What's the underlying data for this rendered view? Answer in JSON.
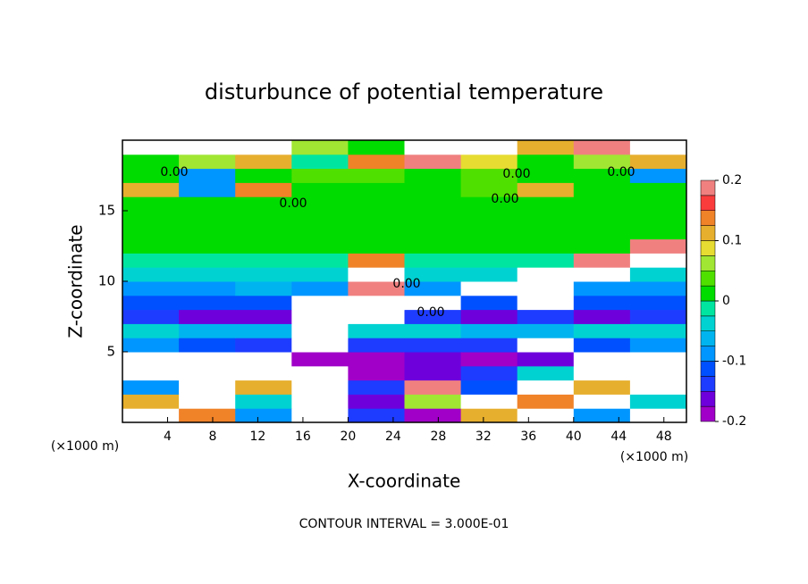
{
  "chart_data": {
    "type": "heatmap",
    "title": "disturbunce of potential temperature",
    "xlabel": "X-coordinate",
    "ylabel": "Z-coordinate",
    "x_units": [
      "(×1000 m)",
      "(×1000 m)"
    ],
    "footer": "CONTOUR INTERVAL = 3.000E-01",
    "xlim": [
      0,
      50
    ],
    "ylim": [
      0,
      20
    ],
    "xticks": [
      4,
      8,
      12,
      16,
      20,
      24,
      28,
      32,
      36,
      40,
      44,
      48
    ],
    "yticks": [
      5,
      10,
      15
    ],
    "x": [
      2.5,
      7.5,
      12.5,
      17.5,
      22.5,
      27.5,
      32.5,
      37.5,
      42.5,
      47.5
    ],
    "y": [
      0.5,
      1.5,
      2.5,
      3.5,
      4.5,
      5.5,
      6.5,
      7.5,
      8.5,
      9.5,
      10.5,
      11.5,
      12.5,
      13.5,
      14.5,
      15.5,
      16.5,
      17.5,
      18.5,
      19.5
    ],
    "z": [
      [
        0.3,
        0.15,
        -0.1,
        0.3,
        -0.15,
        -0.18,
        0.1,
        0.3,
        -0.1,
        0.3
      ],
      [
        0.12,
        0.3,
        -0.05,
        0.3,
        -0.17,
        0.05,
        0.3,
        0.15,
        0.3,
        -0.05
      ],
      [
        -0.1,
        0.3,
        0.1,
        -0.3,
        -0.15,
        0.2,
        -0.12,
        -0.3,
        0.1,
        0.3
      ],
      [
        0.3,
        -0.3,
        -0.3,
        -0.3,
        -0.18,
        -0.17,
        -0.15,
        -0.05,
        -0.3,
        0.3
      ],
      [
        0.25,
        0.3,
        0.3,
        -0.19,
        -0.18,
        -0.17,
        -0.18,
        -0.16,
        0.3,
        0.3
      ],
      [
        -0.1,
        -0.12,
        -0.13,
        -0.25,
        -0.14,
        -0.13,
        -0.13,
        0.25,
        -0.12,
        -0.1
      ],
      [
        -0.05,
        -0.06,
        -0.07,
        0.3,
        -0.05,
        -0.05,
        -0.06,
        -0.07,
        -0.05,
        -0.05
      ],
      [
        -0.15,
        -0.16,
        -0.16,
        0.3,
        0.3,
        -0.15,
        -0.16,
        -0.15,
        -0.16,
        -0.15
      ],
      [
        -0.12,
        -0.11,
        -0.12,
        -0.3,
        0.3,
        0.25,
        -0.12,
        0.3,
        -0.12,
        -0.11
      ],
      [
        -0.08,
        -0.08,
        -0.07,
        -0.09,
        0.2,
        -0.08,
        0.3,
        0.3,
        -0.08,
        -0.08
      ],
      [
        -0.04,
        -0.04,
        -0.05,
        -0.04,
        0.3,
        -0.04,
        -0.04,
        0.3,
        0.25,
        -0.04
      ],
      [
        -0.02,
        -0.02,
        -0.02,
        -0.02,
        0.15,
        -0.02,
        -0.02,
        -0.02,
        0.2,
        0.25
      ],
      [
        0.0,
        0.0,
        0.0,
        0.0,
        0.0,
        0.0,
        0.0,
        0.0,
        0.01,
        0.2
      ],
      [
        0.01,
        0.01,
        0.01,
        0.01,
        0.01,
        0.01,
        0.01,
        0.01,
        0.01,
        0.01
      ],
      [
        0.0,
        0.0,
        0.0,
        0.0,
        0.0,
        0.0,
        0.0,
        0.0,
        0.0,
        0.0
      ],
      [
        0.0,
        0.005,
        0.0,
        0.0,
        0.0,
        0.0,
        0.0,
        0.0,
        0.0,
        0.0
      ],
      [
        0.12,
        -0.08,
        0.13,
        0.02,
        0.01,
        0.0,
        0.03,
        0.12,
        0.01,
        0.0
      ],
      [
        0.02,
        -0.09,
        0.02,
        0.03,
        0.03,
        0.02,
        0.03,
        0.02,
        0.02,
        -0.08
      ],
      [
        0.0,
        0.05,
        0.1,
        -0.02,
        0.15,
        0.2,
        0.08,
        0.0,
        0.05,
        0.12
      ],
      [
        0.3,
        0.3,
        0.25,
        0.05,
        0.02,
        -0.3,
        -0.3,
        0.1,
        0.2,
        0.3
      ]
    ],
    "clim": [
      -0.2,
      0.2
    ],
    "colors": [
      "#a000c8",
      "#6e00dc",
      "#1e3cff",
      "#0050ff",
      "#0096ff",
      "#00b4f0",
      "#00d2d2",
      "#00e6a0",
      "#00dc00",
      "#50e000",
      "#a0e632",
      "#e6dc32",
      "#e6af2d",
      "#f08228",
      "#fa3c3c",
      "#f08080"
    ],
    "out_of_range_color": "#ffffff",
    "cbar_ticks": [
      0.2,
      0.1,
      0,
      -0.1,
      -0.2
    ],
    "contour_labels": [
      "0.00",
      "0.00",
      "0.00",
      "0.00",
      "0.00",
      "0.00",
      "0.00"
    ]
  }
}
